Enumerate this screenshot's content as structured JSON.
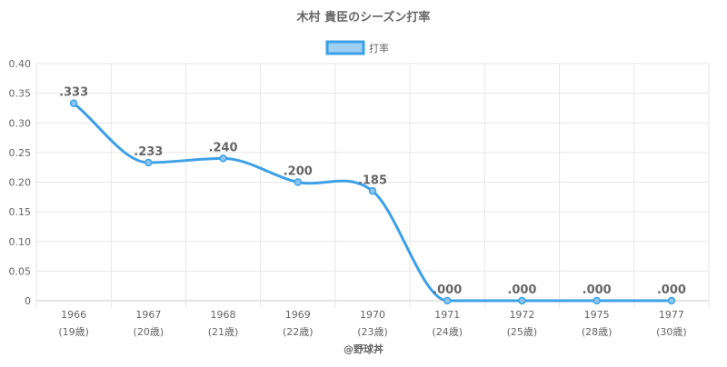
{
  "chart_data": {
    "type": "line",
    "title": "木村 貴臣のシーズン打率",
    "legend": {
      "label": "打率",
      "position": "top"
    },
    "x": [
      "1966",
      "1967",
      "1968",
      "1969",
      "1970",
      "1971",
      "1972",
      "1975",
      "1977"
    ],
    "x_sublabels": [
      "(19歳)",
      "(20歳)",
      "(21歳)",
      "(22歳)",
      "(23歳)",
      "(24歳)",
      "(25歳)",
      "(28歳)",
      "(30歳)"
    ],
    "series": [
      {
        "name": "打率",
        "values": [
          0.333,
          0.233,
          0.24,
          0.2,
          0.185,
          0.0,
          0.0,
          0.0,
          0.0
        ],
        "labels": [
          ".333",
          ".233",
          ".240",
          ".200",
          ".185",
          ".000",
          ".000",
          ".000",
          ".000"
        ]
      }
    ],
    "ylim": [
      0,
      0.4
    ],
    "yticks": [
      "0",
      "0.05",
      "0.10",
      "0.15",
      "0.20",
      "0.25",
      "0.30",
      "0.35",
      "0.40"
    ],
    "grid": true,
    "colors": {
      "line": "#3da0e6",
      "point_fill": "#8cc6f0",
      "legend_fill": "#9fd0f4",
      "grid": "#e6e6e6",
      "text": "#666666"
    }
  },
  "credit": "@野球丼"
}
